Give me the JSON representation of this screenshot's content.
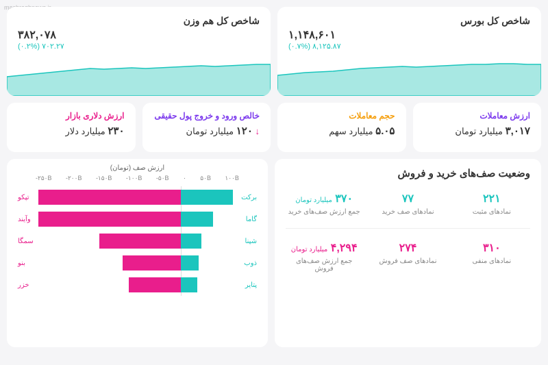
{
  "watermark": "mashreghnews.ir",
  "colors": {
    "teal": "#1bc5bd",
    "teal_fill": "#a8e8e3",
    "pink": "#e91e8c",
    "purple": "#7c3aed",
    "orange": "#f59e0b"
  },
  "index_cards": [
    {
      "title": "شاخص کل بورس",
      "value": "۱,۱۴۸,۶۰۱",
      "change": "۸,۱۲۵.۸۷ (۰.۷%)",
      "change_color": "#1bc5bd",
      "spark": [
        30,
        28,
        26,
        25,
        24,
        22,
        20,
        19,
        18,
        17,
        18,
        17,
        16,
        15,
        14,
        14,
        13,
        13,
        14,
        14
      ]
    },
    {
      "title": "شاخص کل هم وزن",
      "value": "۳۸۲,۰۷۸",
      "change": "۷۰۲.۲۷ (۰.۲%)",
      "change_color": "#1bc5bd",
      "spark": [
        32,
        30,
        28,
        26,
        24,
        22,
        20,
        21,
        20,
        19,
        20,
        19,
        18,
        17,
        16,
        17,
        16,
        15,
        14,
        14
      ]
    }
  ],
  "stat_cards": [
    {
      "title": "ارزش معاملات",
      "title_color": "#7c3aed",
      "value_num": "۳,۰۱۷",
      "value_unit": "میلیارد تومان"
    },
    {
      "title": "حجم معاملات",
      "title_color": "#f59e0b",
      "value_num": "۵.۰۵",
      "value_unit": "میلیارد سهم"
    },
    {
      "title": "خالص ورود و خروج پول حقیقی",
      "title_color": "#7c3aed",
      "value_num": "۱۲۰",
      "value_unit": "میلیارد تومان",
      "arrow": "↓",
      "arrow_color": "#e91e8c"
    },
    {
      "title": "ارزش دلاری بازار",
      "title_color": "#e91e8c",
      "value_num": "۲۳۰",
      "value_unit": "میلیارد دلار"
    }
  ],
  "queue": {
    "title": "وضعیت صف‌های خرید و فروش",
    "buy": {
      "color": "#1bc5bd",
      "cells": [
        {
          "num": "۲۲۱",
          "label": "نمادهای مثبت"
        },
        {
          "num": "۷۷",
          "label": "نمادهای صف خرید"
        },
        {
          "num": "۳۷۰",
          "unit": "میلیارد تومان",
          "label": "جمع ارزش صف‌های خرید"
        }
      ]
    },
    "sell": {
      "color": "#e91e8c",
      "cells": [
        {
          "num": "۳۱۰",
          "label": "نمادهای منفی"
        },
        {
          "num": "۲۷۴",
          "label": "نمادهای صف فروش"
        },
        {
          "num": "۴,۲۹۴",
          "unit": "میلیارد تومان",
          "label": "جمع ارزش صف‌های فروش"
        }
      ]
    }
  },
  "bar_chart": {
    "axis_title": "ارزش صف (تومان)",
    "axis_ticks": [
      "-۲۵۰B",
      "-۲۰۰B",
      "-۱۵۰B",
      "-۱۰۰B",
      "-۵۰B",
      "۰",
      "۵۰B",
      "۱۰۰B"
    ],
    "xmin": -250,
    "xmax": 100,
    "bars": [
      {
        "pos_label": "برکت",
        "pos": 90,
        "neg_label": "تپکو",
        "neg": 245
      },
      {
        "pos_label": "گاما",
        "pos": 55,
        "neg_label": "وآیند",
        "neg": 245
      },
      {
        "pos_label": "شپنا",
        "pos": 35,
        "neg_label": "سمگا",
        "neg": 140
      },
      {
        "pos_label": "ذوب",
        "pos": 30,
        "neg_label": "بنو",
        "neg": 100
      },
      {
        "pos_label": "پتایر",
        "pos": 28,
        "neg_label": "خزر",
        "neg": 90
      }
    ],
    "pos_color": "#1bc5bd",
    "neg_color": "#e91e8c"
  }
}
